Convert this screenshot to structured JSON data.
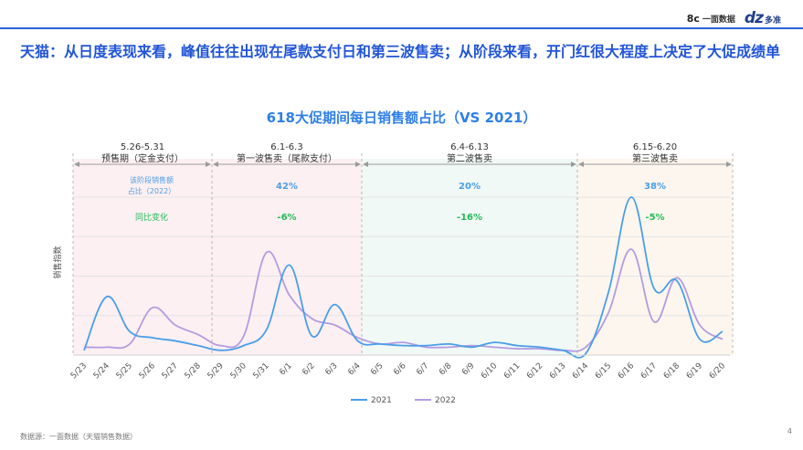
{
  "brand": {
    "logo1_mark": "8c",
    "logo1_text": "一面数据",
    "logo2_mark": "dz",
    "logo2_text": "多准"
  },
  "headline": "天猫：从日度表现来看，峰值往往出现在尾款支付日和第三波售卖；从阶段来看，开门红很大程度上决定了大促成绩单",
  "source": "数据源：一面数据（天猫销售数据）",
  "page_number": "4",
  "colors": {
    "s2021": "#4a9ee8",
    "s2022": "#b49be0",
    "share": "#4a9ee8",
    "yoy": "#22bb55"
  },
  "chart_data": {
    "type": "line",
    "title": "618大促期间每日销售额占比（VS 2021）",
    "ylabel": "销售指数",
    "xlabel": "",
    "ylim": [
      0,
      100
    ],
    "grid": true,
    "legend_position": "bottom-center",
    "categories": [
      "5/23",
      "5/24",
      "5/25",
      "5/26",
      "5/27",
      "5/28",
      "5/29",
      "5/30",
      "5/31",
      "6/1",
      "6/2",
      "6/3",
      "6/4",
      "6/5",
      "6/6",
      "6/7",
      "6/8",
      "6/9",
      "6/10",
      "6/11",
      "6/12",
      "6/13",
      "6/14",
      "6/15",
      "6/16",
      "6/17",
      "6/18",
      "6/19",
      "6/20"
    ],
    "series": [
      {
        "name": "2021",
        "color": "#4a9ee8",
        "values": [
          3,
          37,
          15,
          11,
          9,
          6,
          3,
          6,
          16,
          57,
          12,
          32,
          9,
          7,
          6,
          6,
          7,
          5,
          8,
          6,
          5,
          3,
          1,
          40,
          100,
          42,
          47,
          10,
          15
        ]
      },
      {
        "name": "2022",
        "color": "#b49be0",
        "values": [
          5,
          5,
          7,
          30,
          19,
          13,
          6,
          12,
          65,
          38,
          23,
          19,
          11,
          7,
          8,
          5,
          5,
          6,
          5,
          4,
          4,
          3,
          5,
          27,
          67,
          21,
          49,
          19,
          10
        ]
      }
    ],
    "phases": [
      {
        "range": "5.26-5.31",
        "name": "预售期（定金支付）",
        "share": "",
        "yoy": ""
      },
      {
        "range": "6.1-6.3",
        "name": "第一波售卖（尾款支付）",
        "share": "42%",
        "yoy": "-6%"
      },
      {
        "range": "6.4-6.13",
        "name": "第二波售卖",
        "share": "20%",
        "yoy": "-16%"
      },
      {
        "range": "6.15-6.20",
        "name": "第三波售卖",
        "share": "38%",
        "yoy": "-5%"
      }
    ],
    "row_labels": {
      "share": "该阶段销售额\n占比（2022）",
      "yoy": "同比变化"
    }
  }
}
